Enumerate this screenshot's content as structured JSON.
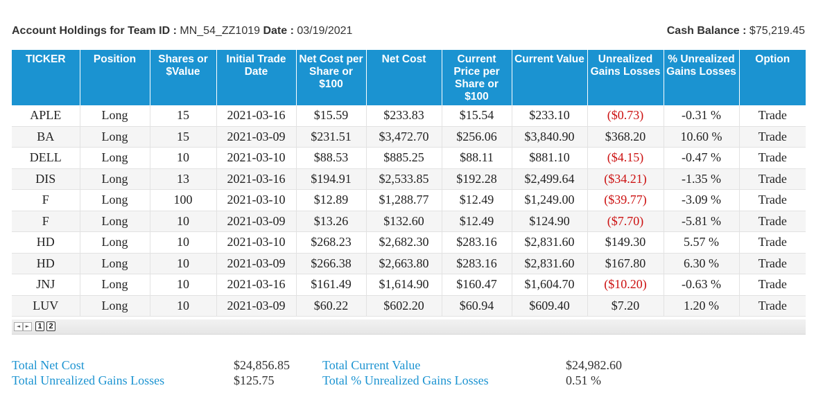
{
  "header": {
    "team_label": "Account Holdings for Team ID :",
    "team_id": "MN_54_ZZ1019",
    "date_label": "Date :",
    "date": "03/19/2021",
    "cash_label": "Cash Balance :",
    "cash": "$75,219.45"
  },
  "table": {
    "columns": [
      "TICKER",
      "Position",
      "Shares or $Value",
      "Initial Trade Date",
      "Net Cost per Share or $100",
      "Net Cost",
      "Current Price per Share or $100",
      "Current Value",
      "Unrealized Gains Losses",
      "% Unrealized Gains Losses",
      "Option"
    ],
    "rows": [
      {
        "ticker": "APLE",
        "position": "Long",
        "shares": "15",
        "date": "2021-03-16",
        "cost_per": "$15.59",
        "net_cost": "$233.83",
        "price": "$15.54",
        "value": "$233.10",
        "gain": "($0.73)",
        "pct": "-0.31 %",
        "option": "Trade",
        "negative": true
      },
      {
        "ticker": "BA",
        "position": "Long",
        "shares": "15",
        "date": "2021-03-09",
        "cost_per": "$231.51",
        "net_cost": "$3,472.70",
        "price": "$256.06",
        "value": "$3,840.90",
        "gain": "$368.20",
        "pct": "10.60 %",
        "option": "Trade",
        "negative": false
      },
      {
        "ticker": "DELL",
        "position": "Long",
        "shares": "10",
        "date": "2021-03-10",
        "cost_per": "$88.53",
        "net_cost": "$885.25",
        "price": "$88.11",
        "value": "$881.10",
        "gain": "($4.15)",
        "pct": "-0.47 %",
        "option": "Trade",
        "negative": true
      },
      {
        "ticker": "DIS",
        "position": "Long",
        "shares": "13",
        "date": "2021-03-16",
        "cost_per": "$194.91",
        "net_cost": "$2,533.85",
        "price": "$192.28",
        "value": "$2,499.64",
        "gain": "($34.21)",
        "pct": "-1.35 %",
        "option": "Trade",
        "negative": true
      },
      {
        "ticker": "F",
        "position": "Long",
        "shares": "100",
        "date": "2021-03-10",
        "cost_per": "$12.89",
        "net_cost": "$1,288.77",
        "price": "$12.49",
        "value": "$1,249.00",
        "gain": "($39.77)",
        "pct": "-3.09 %",
        "option": "Trade",
        "negative": true
      },
      {
        "ticker": "F",
        "position": "Long",
        "shares": "10",
        "date": "2021-03-09",
        "cost_per": "$13.26",
        "net_cost": "$132.60",
        "price": "$12.49",
        "value": "$124.90",
        "gain": "($7.70)",
        "pct": "-5.81 %",
        "option": "Trade",
        "negative": true
      },
      {
        "ticker": "HD",
        "position": "Long",
        "shares": "10",
        "date": "2021-03-10",
        "cost_per": "$268.23",
        "net_cost": "$2,682.30",
        "price": "$283.16",
        "value": "$2,831.60",
        "gain": "$149.30",
        "pct": "5.57 %",
        "option": "Trade",
        "negative": false
      },
      {
        "ticker": "HD",
        "position": "Long",
        "shares": "10",
        "date": "2021-03-09",
        "cost_per": "$266.38",
        "net_cost": "$2,663.80",
        "price": "$283.16",
        "value": "$2,831.60",
        "gain": "$167.80",
        "pct": "6.30 %",
        "option": "Trade",
        "negative": false
      },
      {
        "ticker": "JNJ",
        "position": "Long",
        "shares": "10",
        "date": "2021-03-16",
        "cost_per": "$161.49",
        "net_cost": "$1,614.90",
        "price": "$160.47",
        "value": "$1,604.70",
        "gain": "($10.20)",
        "pct": "-0.63 %",
        "option": "Trade",
        "negative": true
      },
      {
        "ticker": "LUV",
        "position": "Long",
        "shares": "10",
        "date": "2021-03-09",
        "cost_per": "$60.22",
        "net_cost": "$602.20",
        "price": "$60.94",
        "value": "$609.40",
        "gain": "$7.20",
        "pct": "1.20 %",
        "option": "Trade",
        "negative": false
      }
    ]
  },
  "pager": {
    "prev_icon": "triangle-left-icon",
    "next_icon": "triangle-right-icon",
    "pages": [
      "1",
      "2"
    ],
    "current_page": "1"
  },
  "totals": {
    "net_cost_label": "Total Net Cost",
    "net_cost": "$24,856.85",
    "gains_label": "Total Unrealized Gains Losses",
    "gains": "$125.75",
    "current_value_label": "Total Current Value",
    "current_value": "$24,982.60",
    "pct_label": "Total % Unrealized Gains Losses",
    "pct": "0.51 %"
  },
  "colors": {
    "header_bg": "#1b93d1",
    "negative": "#cc1111",
    "total_label": "#1b93d1"
  }
}
